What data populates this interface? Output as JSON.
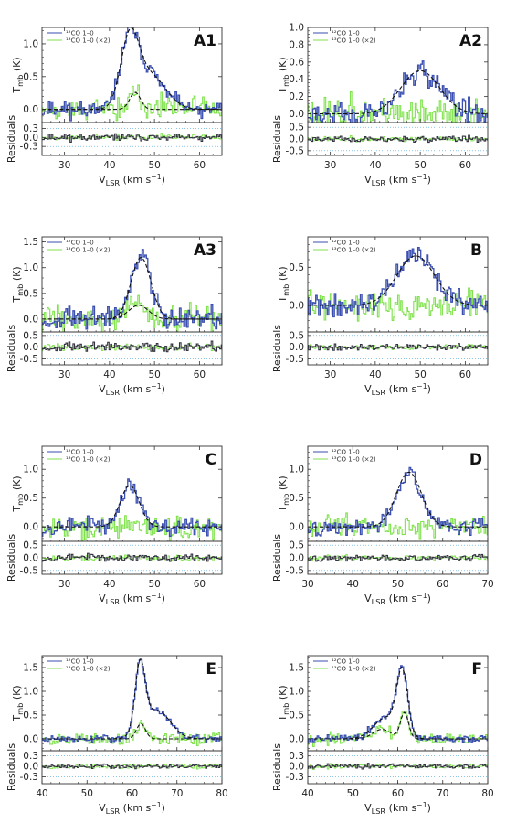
{
  "chart_data": [
    {
      "panel": "A1",
      "type": "line",
      "xlim": [
        25,
        65
      ],
      "xticks": [
        30,
        40,
        50,
        60
      ],
      "ylim": [
        -0.2,
        1.25
      ],
      "yticks": [
        0.0,
        0.5,
        1.0
      ],
      "res_lim": [
        -0.6,
        0.5
      ],
      "res_ticks": [
        -0.3,
        0.0,
        0.3
      ],
      "res_tick_labels": [
        "-0.3",
        "0.0",
        "0.3"
      ],
      "xlabel": "V_LSR (km s⁻¹)",
      "ylabel": "T_mb (K)",
      "res_label": "Residuals",
      "legend": [
        "¹²CO 1–0",
        "¹³CO 1–0 (×2)"
      ],
      "fit12": [
        {
          "v": 44.5,
          "a": 1.0,
          "s": 2.0
        },
        {
          "v": 49.0,
          "a": 0.52,
          "s": 3.5
        }
      ],
      "fit13": [
        {
          "v": 45.7,
          "a": 0.26,
          "s": 1.2
        }
      ],
      "noise12": 0.09,
      "noise13": 0.13,
      "seed": 11
    },
    {
      "panel": "A2",
      "type": "line",
      "xlim": [
        25,
        65
      ],
      "xticks": [
        30,
        40,
        50,
        60
      ],
      "ylim": [
        -0.1,
        1.0
      ],
      "yticks": [
        0.0,
        0.2,
        0.4,
        0.6,
        0.8,
        1.0
      ],
      "res_lim": [
        -0.7,
        0.7
      ],
      "res_ticks": [
        -0.5,
        0.0,
        0.5
      ],
      "res_tick_labels": [
        "-0.5",
        "0.0",
        "0.5"
      ],
      "xlabel": "V_LSR (km s⁻¹)",
      "ylabel": "T_mb (K)",
      "res_label": "Residuals",
      "legend": [
        "¹²CO 1–0",
        "¹³CO 1–0 (×2)"
      ],
      "fit12": [
        {
          "v": 50.0,
          "a": 0.5,
          "s": 4.3
        }
      ],
      "fit13": [],
      "noise12": 0.1,
      "noise13": 0.13,
      "seed": 23
    },
    {
      "panel": "A3",
      "type": "line",
      "xlim": [
        25,
        65
      ],
      "xticks": [
        30,
        40,
        50,
        60
      ],
      "ylim": [
        -0.25,
        1.6
      ],
      "yticks": [
        0.0,
        0.5,
        1.0,
        1.5
      ],
      "res_lim": [
        -0.75,
        0.65
      ],
      "res_ticks": [
        -0.5,
        0.0,
        0.5
      ],
      "res_tick_labels": [
        "-0.5",
        "0.0",
        "0.5"
      ],
      "xlabel": "V_LSR (km s⁻¹)",
      "ylabel": "T_mb (K)",
      "res_label": "Residuals",
      "legend": [
        "¹²CO 1–0",
        "¹³CO 1–0 (×2)"
      ],
      "fit12": [
        {
          "v": 47.0,
          "a": 1.2,
          "s": 2.2
        }
      ],
      "fit13": [
        {
          "v": 46.5,
          "a": 0.27,
          "s": 2.2
        }
      ],
      "noise12": 0.16,
      "noise13": 0.18,
      "seed": 37
    },
    {
      "panel": "B",
      "type": "line",
      "xlim": [
        25,
        65
      ],
      "xticks": [
        30,
        40,
        50,
        60
      ],
      "ylim": [
        -0.35,
        0.9
      ],
      "yticks": [
        0.0,
        0.5
      ],
      "res_lim": [
        -0.75,
        0.65
      ],
      "res_ticks": [
        -0.5,
        0.0,
        0.5
      ],
      "res_tick_labels": [
        "-0.5",
        "0.0",
        "0.5"
      ],
      "xlabel": "V_LSR (km s⁻¹)",
      "ylabel": "T_mb (K)",
      "res_label": "Residuals",
      "legend": [
        "¹²CO 1–0",
        "¹³CO 1–0 (×2)"
      ],
      "fit12": [
        {
          "v": 49.0,
          "a": 0.65,
          "s": 4.2
        }
      ],
      "fit13": [],
      "noise12": 0.1,
      "noise13": 0.14,
      "seed": 41
    },
    {
      "panel": "C",
      "type": "line",
      "xlim": [
        25,
        65
      ],
      "xticks": [
        30,
        40,
        50,
        60
      ],
      "ylim": [
        -0.25,
        1.4
      ],
      "yticks": [
        0.0,
        0.5,
        1.0
      ],
      "res_lim": [
        -0.65,
        0.65
      ],
      "res_ticks": [
        -0.5,
        0.0,
        0.5
      ],
      "res_tick_labels": [
        "-0.5",
        "0.0",
        "0.5"
      ],
      "xlabel": "V_LSR (km s⁻¹)",
      "ylabel": "T_mb (K)",
      "res_label": "Residuals",
      "legend": [
        "¹²CO 1–0",
        "¹³CO 1–0 (×2)"
      ],
      "fit12": [
        {
          "v": 44.5,
          "a": 0.72,
          "s": 2.1
        }
      ],
      "fit13": [],
      "noise12": 0.11,
      "noise13": 0.14,
      "seed": 53
    },
    {
      "panel": "D",
      "type": "line",
      "xlim": [
        30,
        70
      ],
      "xticks": [
        30,
        40,
        50,
        60,
        70
      ],
      "ylim": [
        -0.25,
        1.4
      ],
      "yticks": [
        0.0,
        0.5,
        1.0
      ],
      "res_lim": [
        -0.65,
        0.65
      ],
      "res_ticks": [
        -0.5,
        0.0,
        0.5
      ],
      "res_tick_labels": [
        "-0.5",
        "0.0",
        "0.5"
      ],
      "xlabel": "V_LSR (km s⁻¹)",
      "ylabel": "T_mb (K)",
      "res_label": "Residuals",
      "legend": [
        "¹²CO 1–0",
        "¹³CO 1–0 (×2)"
      ],
      "fit12": [
        {
          "v": 52.5,
          "a": 0.95,
          "s": 2.8
        }
      ],
      "fit13": [],
      "noise12": 0.1,
      "noise13": 0.13,
      "seed": 67
    },
    {
      "panel": "E",
      "type": "line",
      "xlim": [
        40,
        80
      ],
      "xticks": [
        40,
        50,
        60,
        70,
        80
      ],
      "ylim": [
        -0.25,
        1.75
      ],
      "yticks": [
        0.0,
        0.5,
        1.0,
        1.5
      ],
      "res_lim": [
        -0.5,
        0.45
      ],
      "res_ticks": [
        -0.3,
        0.0,
        0.3
      ],
      "res_tick_labels": [
        "-0.3",
        "0.0",
        "0.3"
      ],
      "xlabel": "V_LSR (km s⁻¹)",
      "ylabel": "T_mb (K)",
      "res_label": "Residuals",
      "legend": [
        "¹²CO 1–0",
        "¹³CO 1–0 (×2)"
      ],
      "fit12": [
        {
          "v": 61.8,
          "a": 1.4,
          "s": 1.1
        },
        {
          "v": 65.5,
          "a": 0.6,
          "s": 3.0
        }
      ],
      "fit13": [
        {
          "v": 62.0,
          "a": 0.32,
          "s": 1.0
        }
      ],
      "noise12": 0.05,
      "noise13": 0.09,
      "seed": 79
    },
    {
      "panel": "F",
      "type": "line",
      "xlim": [
        40,
        80
      ],
      "xticks": [
        40,
        50,
        60,
        70,
        80
      ],
      "ylim": [
        -0.25,
        1.75
      ],
      "yticks": [
        0.0,
        0.5,
        1.0,
        1.5
      ],
      "res_lim": [
        -0.5,
        0.45
      ],
      "res_ticks": [
        -0.3,
        0.0,
        0.3
      ],
      "res_tick_labels": [
        "-0.3",
        "0.0",
        "0.3"
      ],
      "xlabel": "V_LSR (km s⁻¹)",
      "ylabel": "T_mb (K)",
      "res_label": "Residuals",
      "legend": [
        "¹²CO 1–0",
        "¹³CO 1–0 (×2)"
      ],
      "fit12": [
        {
          "v": 61.0,
          "a": 1.3,
          "s": 1.2
        },
        {
          "v": 57.5,
          "a": 0.45,
          "s": 2.8
        }
      ],
      "fit13": [
        {
          "v": 56.5,
          "a": 0.2,
          "s": 2.0
        },
        {
          "v": 61.5,
          "a": 0.55,
          "s": 0.9
        }
      ],
      "noise12": 0.05,
      "noise13": 0.08,
      "seed": 97
    }
  ],
  "colors": {
    "co12": "#3a4fb0",
    "co13": "#7fe24c",
    "fit": "#111111",
    "residual_line": "#333340",
    "axes": "#333333",
    "zero_line": "#4aa3d8"
  }
}
